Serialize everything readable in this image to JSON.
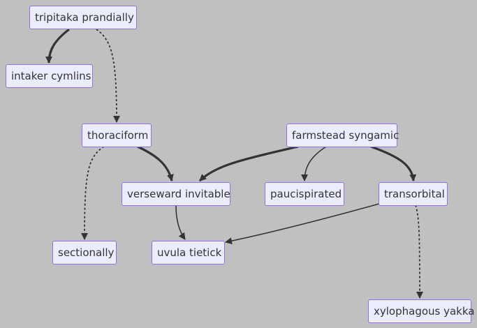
{
  "diagram": {
    "background": "#c0c0c0",
    "node_fill": "#ececff",
    "node_border": "#9370db",
    "edge_color": "#333333",
    "nodes": {
      "tripitaka_prandially": "tripitaka prandially",
      "intaker_cymlins": "intaker cymlins",
      "thoraciform": "thoraciform",
      "farmstead_syngamic": "farmstead syngamic",
      "verseward_invitable": "verseward invitable",
      "paucispirated": "paucispirated",
      "transorbital": "transorbital",
      "sectionally": "sectionally",
      "uvula_tietick": "uvula tietick",
      "xylophagous_yakka": "xylophagous yakka"
    },
    "edges": [
      {
        "from": "tripitaka_prandially",
        "to": "intaker_cymlins",
        "style": "thick"
      },
      {
        "from": "tripitaka_prandially",
        "to": "thoraciform",
        "style": "dotted"
      },
      {
        "from": "thoraciform",
        "to": "verseward_invitable",
        "style": "thick"
      },
      {
        "from": "thoraciform",
        "to": "sectionally",
        "style": "dotted"
      },
      {
        "from": "farmstead_syngamic",
        "to": "verseward_invitable",
        "style": "thick"
      },
      {
        "from": "farmstead_syngamic",
        "to": "paucispirated",
        "style": "normal"
      },
      {
        "from": "farmstead_syngamic",
        "to": "transorbital",
        "style": "thick"
      },
      {
        "from": "verseward_invitable",
        "to": "uvula_tietick",
        "style": "normal"
      },
      {
        "from": "transorbital",
        "to": "uvula_tietick",
        "style": "normal"
      },
      {
        "from": "transorbital",
        "to": "xylophagous_yakka",
        "style": "dotted"
      }
    ]
  }
}
